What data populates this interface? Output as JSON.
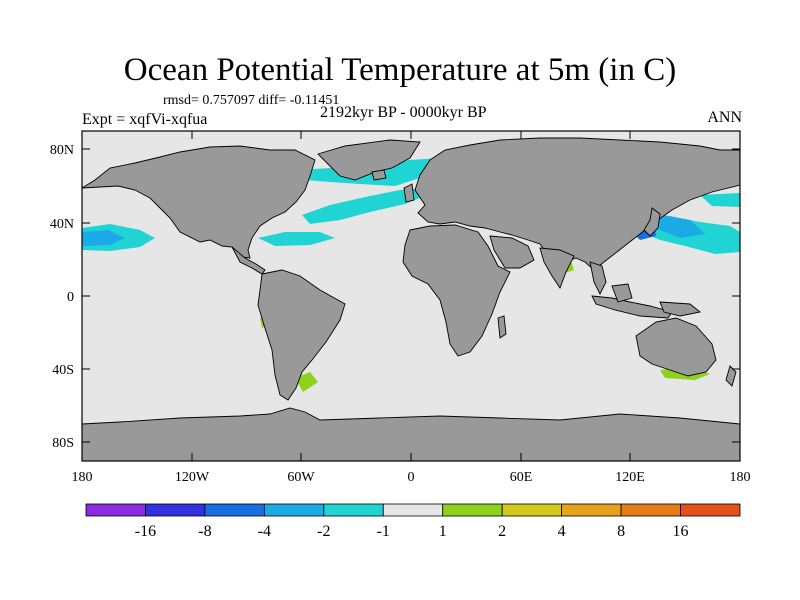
{
  "title": "Ocean Potential Temperature at 5m (in C)",
  "stats": "rmsd= 0.757097  diff= -0.11451",
  "experiment": "Expt = xqfVi-xqfua",
  "period": "2192kyr BP - 0000kyr BP",
  "season": "ANN",
  "colors": {
    "ocean": "#e6e6e6",
    "land": "#999999",
    "coast": "#000000"
  },
  "map": {
    "lon_labels": [
      "180",
      "120W",
      "60W",
      "0",
      "60E",
      "120E",
      "180"
    ],
    "lat_labels": [
      "80N",
      "40N",
      "0",
      "40S",
      "80S"
    ]
  },
  "colorbar": {
    "bins": [
      "#8a2be2",
      "#3131e0",
      "#1a6ee0",
      "#1aaae6",
      "#20d4d4",
      "#e6e6e6",
      "#8ed21c",
      "#d4c81a",
      "#e6a21a",
      "#e67d1a",
      "#e6501a"
    ],
    "labels": [
      "-16",
      "-8",
      "-4",
      "-2",
      "-1",
      "1",
      "2",
      "4",
      "8",
      "16"
    ]
  }
}
